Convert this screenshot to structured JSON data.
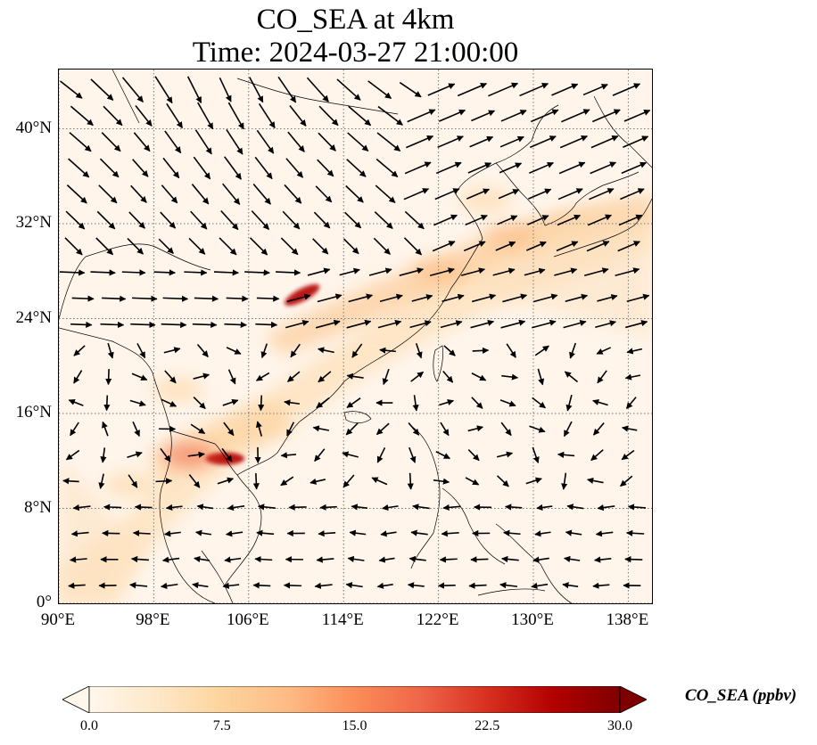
{
  "title": {
    "line1": "CO_SEA at 4km",
    "line2": "Time: 2024-03-27 21:00:00"
  },
  "map": {
    "projection": "PlateCarree",
    "lon_range": [
      90,
      140
    ],
    "lat_range": [
      0,
      45
    ],
    "gridlines": "dotted",
    "background_color": "#fff5eb",
    "x_ticks": [
      {
        "value": 90,
        "label": "90°E"
      },
      {
        "value": 98,
        "label": "98°E"
      },
      {
        "value": 106,
        "label": "106°E"
      },
      {
        "value": 114,
        "label": "114°E"
      },
      {
        "value": 122,
        "label": "122°E"
      },
      {
        "value": 130,
        "label": "130°E"
      },
      {
        "value": 138,
        "label": "138°E"
      }
    ],
    "y_ticks": [
      {
        "value": 0,
        "label": "0°"
      },
      {
        "value": 8,
        "label": "8°N"
      },
      {
        "value": 16,
        "label": "16°N"
      },
      {
        "value": 24,
        "label": "24°N"
      },
      {
        "value": 32,
        "label": "32°N"
      },
      {
        "value": 40,
        "label": "40°N"
      }
    ],
    "concentration_hotspots": [
      {
        "lon": 110.5,
        "lat": 26.0,
        "level": 28
      },
      {
        "lon": 104.0,
        "lat": 12.2,
        "level": 26
      },
      {
        "lon": 101.0,
        "lat": 12.5,
        "level": 20
      },
      {
        "lon": 122.0,
        "lat": 28.0,
        "level": 11
      },
      {
        "lon": 128.0,
        "lat": 31.0,
        "level": 10
      },
      {
        "lon": 126.0,
        "lat": 34.0,
        "level": 8
      },
      {
        "lon": 100.0,
        "lat": 18.0,
        "level": 8
      },
      {
        "lon": 96.0,
        "lat": 10.0,
        "level": 7
      }
    ]
  },
  "colorbar": {
    "label": "CO_SEA (ppbv)",
    "colormap": "OrRd",
    "min": 0,
    "max": 30,
    "extend": "both",
    "ticks": [
      "0.0",
      "7.5",
      "15.0",
      "22.5",
      "30.0"
    ],
    "tick_values": [
      0,
      7.5,
      15,
      22.5,
      30
    ],
    "colors": [
      "#fff7ec",
      "#fee8c8",
      "#fdd49e",
      "#fdbb84",
      "#fc8d59",
      "#ef6548",
      "#d7301f",
      "#b30000",
      "#7f0000"
    ]
  }
}
